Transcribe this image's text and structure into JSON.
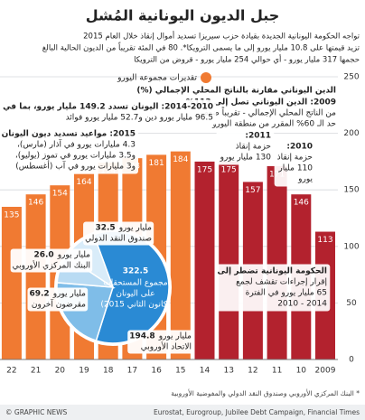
{
  "title": "جبل الديون اليونانية المُشل",
  "subtitle": [
    "تواجه الحكومة اليونانية الجديدة بقيادة حزب سيريزا تسديد أموال إنقاذ خلال العام 2015",
    "تزيد قيمتها على 10.8 مليار يورو إلى ما يسمى الترويكا*. 80 في المئة تقريباً من الديون الحالية البالغ",
    "حجمها 317 مليار يورو - أي حوالي 254 مليار يورو - قروض من الترويكا"
  ],
  "footnote": "* البنك المركزي الأوروبي وصندوق النقد الدولي والمفوضية الأوروبية",
  "source": "Eurostat, Eurogroup, Jubilee Debt Campaign, Financial Times",
  "credit": "© GRAPHIC NEWS",
  "chart_data": [
    {
      "type": "bar",
      "axis_title": "الدين اليوناني مقارنة بالناتج المحلي الإجمالي (%)",
      "categories": [
        "2009",
        "10",
        "11",
        "12",
        "13",
        "14",
        "15",
        "16",
        "17",
        "18",
        "19",
        "20",
        "21",
        "22"
      ],
      "series": [
        {
          "color": "#b3222e",
          "values": [
            113,
            146,
            171,
            157,
            175,
            175,
            null,
            null,
            null,
            null,
            null,
            null,
            null,
            null
          ]
        },
        {
          "name": "تقديرات مجموعة اليورو",
          "color": "#f07a32",
          "values": [
            null,
            null,
            null,
            null,
            null,
            null,
            184,
            181,
            178,
            174,
            164,
            154,
            146,
            135
          ]
        }
      ],
      "ylim": [
        0,
        250
      ],
      "yticks": [
        0,
        50,
        100,
        150,
        200,
        250
      ],
      "grid": true,
      "legend": "top-left",
      "annotations": [
        {
          "lines": [
            "2009: الدين اليوناني تصل إلى 113%",
            "من الناتج المحلي الإجمالي - تقريباً ضعف",
            "حد الـ 60% المقرر من منطقة اليورو"
          ]
        },
        {
          "lines": [
            "2010:",
            "حزمة إنقاذ",
            "110 مليار",
            "يورو"
          ]
        },
        {
          "lines": [
            "2011:",
            "حزمة إنقاذ",
            "130 مليار يورو"
          ]
        },
        {
          "lines": [
            "2014-2010: اليونان تسدد 149.2 مليار يورو، بما في ذلك",
            "96.5 مليار يورو دين و52.7 مليار يورو فوائد"
          ]
        },
        {
          "lines": [
            "2015: مواعيد تسديد ديون اليونان",
            "4.3 مليارات يورو في آذار (مارس)،",
            "و3.5 مليارات يورو في تموز (يوليو)،",
            "و3 مليارات يورو في آب (أغسطس)"
          ]
        },
        {
          "lines": [
            "الحكومة اليونانية تضطر إلى",
            "إقرار إجراءات تقشف لجمع",
            "65 مليار يورو في الفترة",
            "2014 - 2010"
          ]
        }
      ]
    },
    {
      "type": "pie",
      "total": 322.5,
      "caption": [
        "مجموع المستحقات",
        "على اليونان",
        "(كانون الثاني 2015)"
      ],
      "unit": "مليار يورو",
      "categories": [
        "الاتحاد الأوروبي",
        "مقرضون آخرون",
        "البنك المركزي الأوروبي",
        "صندوق النقد الدولي"
      ],
      "values": [
        194.8,
        69.2,
        26.0,
        32.5
      ],
      "value_labels": [
        "194.8",
        "69.2",
        "26.0",
        "32.5"
      ],
      "colors": [
        "#2a8ad4",
        "#7fbde8",
        "#b9dbf3",
        "#d9ecf9"
      ]
    }
  ]
}
